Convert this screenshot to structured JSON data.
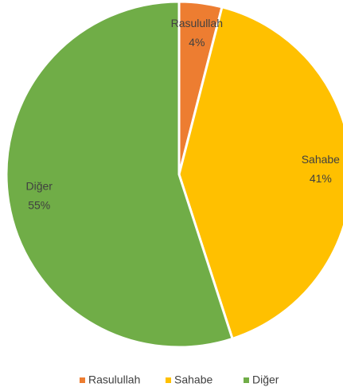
{
  "chart_data": {
    "type": "pie",
    "categories": [
      "Rasulullah",
      "Sahabe",
      "Diğer"
    ],
    "values": [
      4,
      41,
      55
    ],
    "value_labels": [
      "4%",
      "41%",
      "55%"
    ],
    "colors": [
      "#ED7D31",
      "#FFC000",
      "#70AD47"
    ],
    "legend": "bottom"
  }
}
